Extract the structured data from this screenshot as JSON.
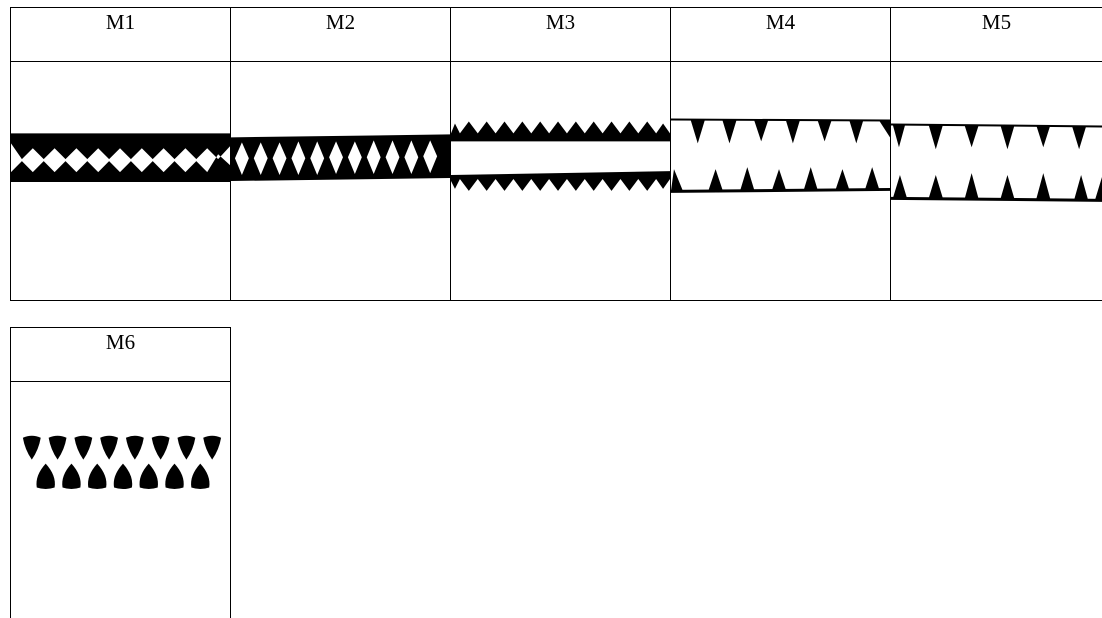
{
  "panels": [
    {
      "label": "M1"
    },
    {
      "label": "M2"
    },
    {
      "label": "M3"
    },
    {
      "label": "M4"
    },
    {
      "label": "M5"
    },
    {
      "label": "M6"
    }
  ]
}
